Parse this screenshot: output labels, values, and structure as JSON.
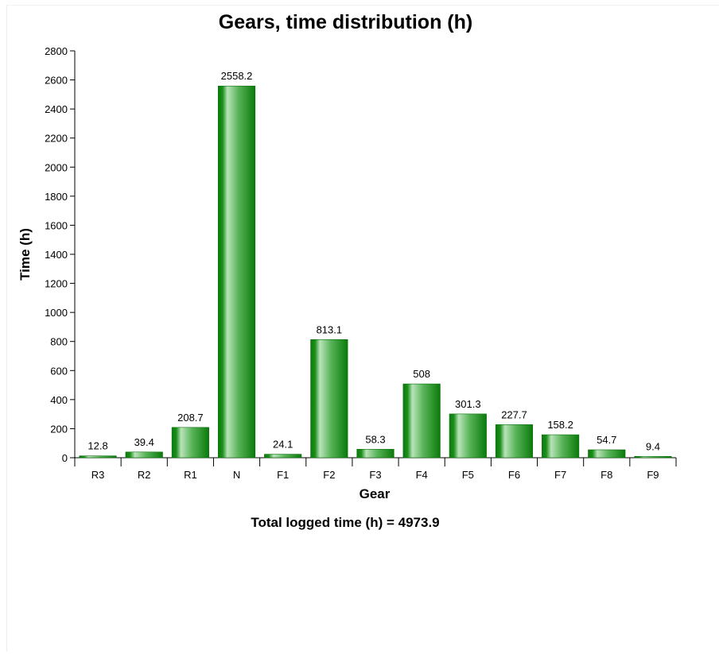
{
  "chart_data": {
    "type": "bar",
    "title": "Gears, time distribution (h)",
    "xlabel": "Gear",
    "ylabel": "Time (h)",
    "categories": [
      "R3",
      "R2",
      "R1",
      "N",
      "F1",
      "F2",
      "F3",
      "F4",
      "F5",
      "F6",
      "F7",
      "F8",
      "F9"
    ],
    "values": [
      12.8,
      39.4,
      208.7,
      2558.2,
      24.1,
      813.1,
      58.3,
      508,
      301.3,
      227.7,
      158.2,
      54.7,
      9.4
    ],
    "data_labels": [
      "12.8",
      "39.4",
      "208.7",
      "2558.2",
      "24.1",
      "813.1",
      "58.3",
      "508",
      "301.3",
      "227.7",
      "158.2",
      "54.7",
      "9.4"
    ],
    "ylim": [
      0,
      2800
    ],
    "yticks": [
      0,
      200,
      400,
      600,
      800,
      1000,
      1200,
      1400,
      1600,
      1800,
      2000,
      2200,
      2400,
      2600,
      2800
    ],
    "grid": false,
    "legend": "none",
    "bar_color": "#0a7d0a",
    "footer": "Total logged time (h) = 4973.9"
  }
}
